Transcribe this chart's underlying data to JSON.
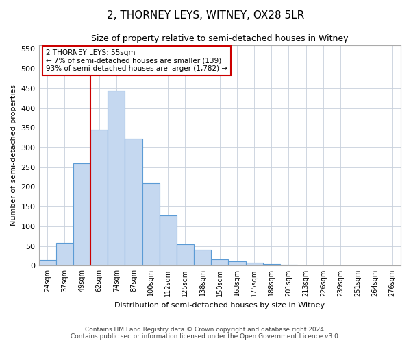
{
  "title1": "2, THORNEY LEYS, WITNEY, OX28 5LR",
  "title2": "Size of property relative to semi-detached houses in Witney",
  "xlabel": "Distribution of semi-detached houses by size in Witney",
  "ylabel": "Number of semi-detached properties",
  "categories": [
    "24sqm",
    "37sqm",
    "49sqm",
    "62sqm",
    "74sqm",
    "87sqm",
    "100sqm",
    "112sqm",
    "125sqm",
    "138sqm",
    "150sqm",
    "163sqm",
    "175sqm",
    "188sqm",
    "201sqm",
    "213sqm",
    "226sqm",
    "239sqm",
    "251sqm",
    "264sqm",
    "276sqm"
  ],
  "values": [
    15,
    58,
    260,
    345,
    445,
    322,
    210,
    128,
    55,
    40,
    17,
    12,
    8,
    5,
    3,
    1,
    0,
    1,
    0,
    0,
    1
  ],
  "bar_color": "#c5d8f0",
  "bar_edge_color": "#5b9bd5",
  "grid_color": "#c8d0dc",
  "annotation_text": "2 THORNEY LEYS: 55sqm\n← 7% of semi-detached houses are smaller (139)\n93% of semi-detached houses are larger (1,782) →",
  "annotation_box_color": "#ffffff",
  "annotation_box_edge_color": "#cc0000",
  "vline_color": "#cc0000",
  "vline_x_index": 2.5,
  "ylim": [
    0,
    560
  ],
  "yticks": [
    0,
    50,
    100,
    150,
    200,
    250,
    300,
    350,
    400,
    450,
    500,
    550
  ],
  "footer1": "Contains HM Land Registry data © Crown copyright and database right 2024.",
  "footer2": "Contains public sector information licensed under the Open Government Licence v3.0.",
  "bg_color": "#ffffff",
  "title1_fontsize": 11,
  "title2_fontsize": 9,
  "xlabel_fontsize": 8,
  "ylabel_fontsize": 8,
  "xtick_fontsize": 7,
  "ytick_fontsize": 8,
  "footer_fontsize": 6.5
}
